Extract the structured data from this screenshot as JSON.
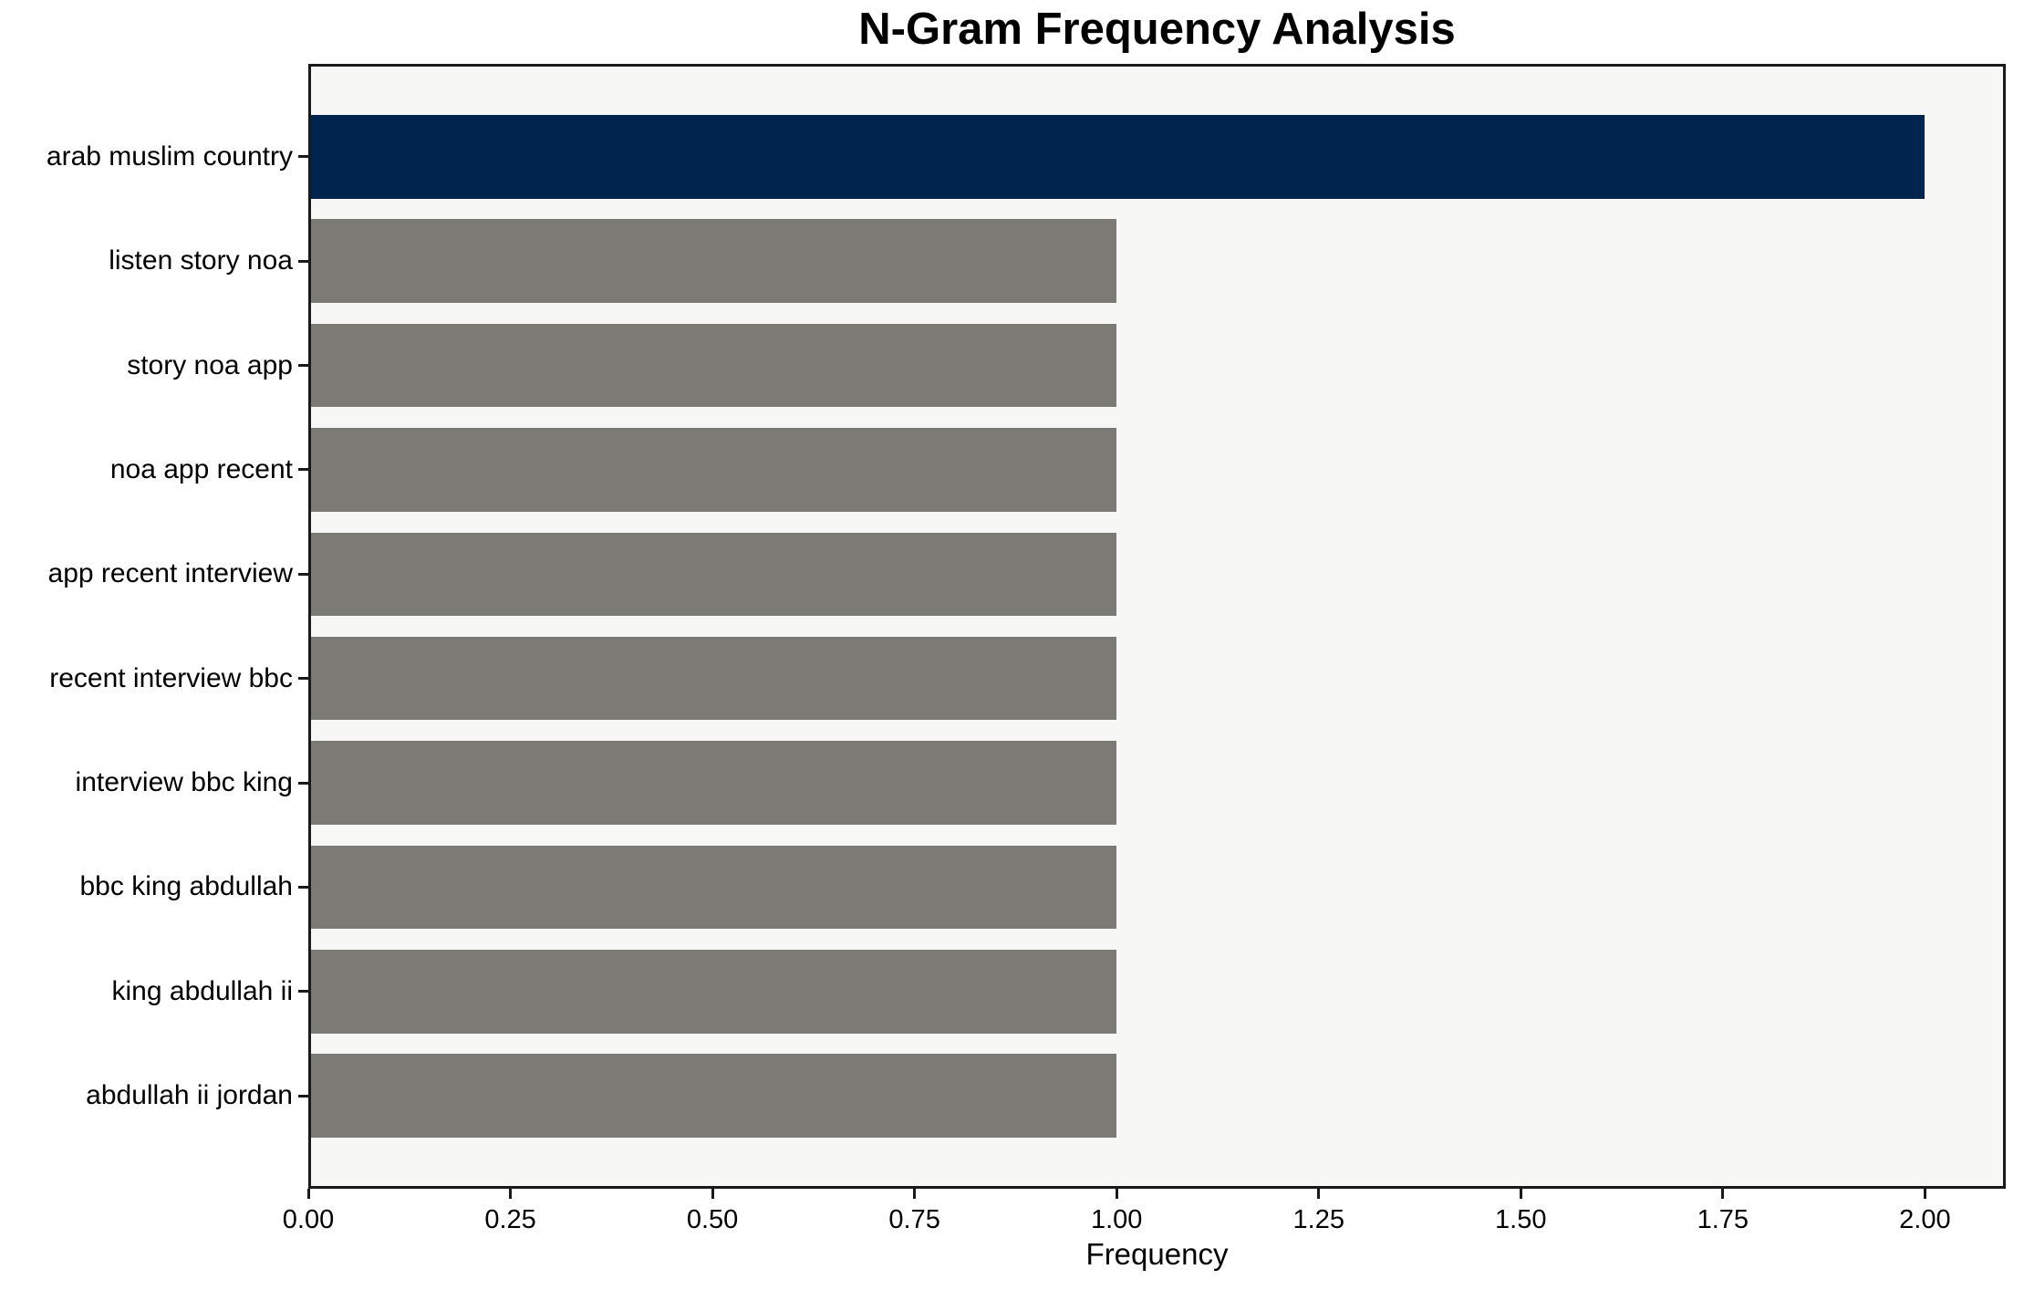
{
  "chart_data": {
    "type": "bar",
    "orientation": "horizontal",
    "title": "N-Gram Frequency Analysis",
    "xlabel": "Frequency",
    "ylabel": "",
    "categories": [
      "arab muslim country",
      "listen story noa",
      "story noa app",
      "noa app recent",
      "app recent interview",
      "recent interview bbc",
      "interview bbc king",
      "bbc king abdullah",
      "king abdullah ii",
      "abdullah ii jordan"
    ],
    "values": [
      2,
      1,
      1,
      1,
      1,
      1,
      1,
      1,
      1,
      1
    ],
    "xlim": [
      0,
      2.1
    ],
    "xticks": [
      0,
      0.25,
      0.5,
      0.75,
      1.0,
      1.25,
      1.5,
      1.75,
      2.0
    ],
    "xtick_labels": [
      "0.00",
      "0.25",
      "0.50",
      "0.75",
      "1.00",
      "1.25",
      "1.50",
      "1.75",
      "2.00"
    ],
    "bar_colors": [
      "#01244e",
      "#7b7a74",
      "#7b7a74",
      "#7b7a74",
      "#7b7a74",
      "#7b7a74",
      "#7b7a74",
      "#7b7a74",
      "#7b7a74",
      "#7b7a74"
    ],
    "colors": {
      "highlight": "#01244e",
      "default": "#7b7a74",
      "plot_background": "#f7f7f5",
      "spine": "#1a1a1a",
      "text": "#000000"
    },
    "grid": false,
    "legend": null,
    "bar_height_fraction": 0.8
  }
}
